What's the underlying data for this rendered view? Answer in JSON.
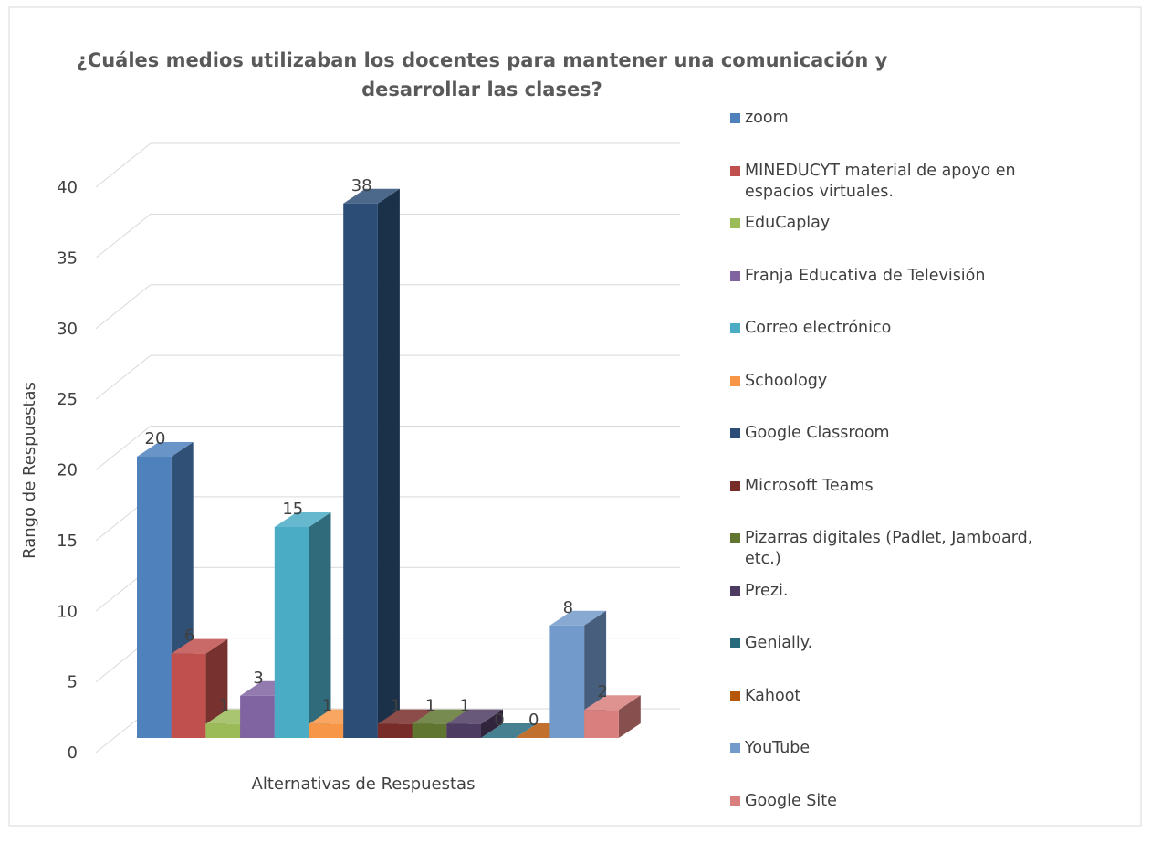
{
  "chart_data": {
    "type": "bar3d",
    "title": "¿Cuáles medios utilizaban los docentes para mantener una comunicación y desarrollar las clases?",
    "y_label": "Rango de Respuestas",
    "x_label": "Alternativas de Respuestas",
    "ylim": [
      0,
      40
    ],
    "yticks": [
      0,
      5,
      10,
      15,
      20,
      25,
      30,
      35,
      40
    ],
    "grid": true,
    "legend": "right",
    "series": [
      {
        "name": "zoom",
        "color": "#4f81bd",
        "values": [
          20
        ]
      },
      {
        "name": "MINEDUCYT material de apoyo en espacios virtuales.",
        "color": "#c0504d",
        "values": [
          6
        ]
      },
      {
        "name": "EduCaplay",
        "color": "#9bbb59",
        "values": [
          1
        ]
      },
      {
        "name": "Franja Educativa de Televisión",
        "color": "#8064a2",
        "values": [
          3
        ]
      },
      {
        "name": "Correo electrónico",
        "color": "#4bacc6",
        "values": [
          15
        ]
      },
      {
        "name": "Schoology",
        "color": "#f79646",
        "values": [
          1
        ]
      },
      {
        "name": "Google Classroom",
        "color": "#2c4d75",
        "values": [
          38
        ]
      },
      {
        "name": "Microsoft Teams",
        "color": "#772c2a",
        "values": [
          1
        ]
      },
      {
        "name": "Pizarras digitales (Padlet, Jamboard, etc.)",
        "color": "#5f7530",
        "values": [
          1
        ]
      },
      {
        "name": "Prezi.",
        "color": "#4d3b62",
        "values": [
          1
        ]
      },
      {
        "name": "Genially.",
        "color": "#276a7c",
        "values": [
          0
        ]
      },
      {
        "name": "Kahoot",
        "color": "#b65708",
        "values": [
          0
        ]
      },
      {
        "name": "YouTube",
        "color": "#729aca",
        "values": [
          8
        ]
      },
      {
        "name": "Google Site",
        "color": "#d9807e",
        "values": [
          2
        ]
      }
    ]
  }
}
